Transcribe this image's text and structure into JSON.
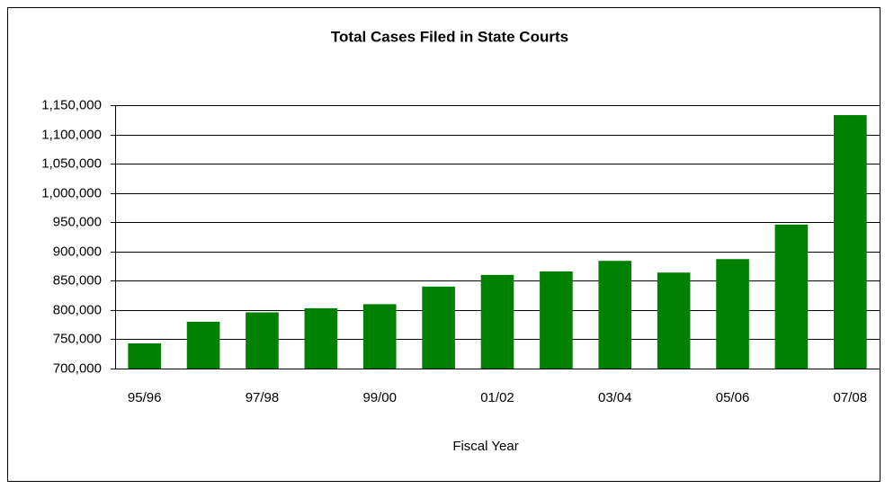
{
  "chart_data": {
    "type": "bar",
    "title": "Total Cases Filed in State Courts",
    "x_label": "Fiscal Year",
    "categories": [
      "95/96",
      null,
      "97/98",
      null,
      "99/00",
      null,
      "01/02",
      null,
      "03/04",
      null,
      "05/06",
      null,
      "07/08"
    ],
    "values": [
      743000,
      780000,
      796000,
      803000,
      810000,
      840000,
      860000,
      866000,
      884000,
      864000,
      887000,
      946000,
      1133000
    ],
    "color": "#008000",
    "ylim": [
      700000,
      1150000
    ],
    "yticks": [
      {
        "value": 700000,
        "label": "700,000"
      },
      {
        "value": 750000,
        "label": "750,000"
      },
      {
        "value": 800000,
        "label": "800,000"
      },
      {
        "value": 850000,
        "label": "850,000"
      },
      {
        "value": 900000,
        "label": "900,000"
      },
      {
        "value": 950000,
        "label": "950,000"
      },
      {
        "value": 1000000,
        "label": "1,000,000"
      },
      {
        "value": 1050000,
        "label": "1,050,000"
      },
      {
        "value": 1100000,
        "label": "1,100,000"
      },
      {
        "value": 1150000,
        "label": "1,150,000"
      }
    ],
    "grid": true
  }
}
